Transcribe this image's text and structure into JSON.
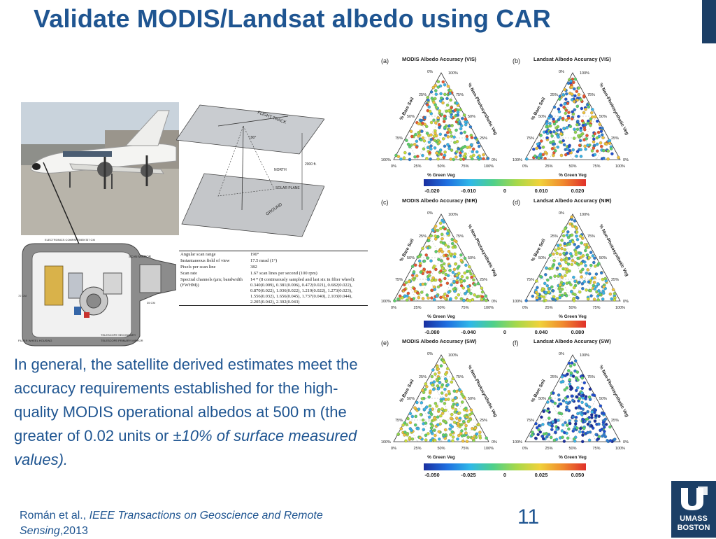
{
  "slide": {
    "title": "Validate MODIS/Landsat albedo using CAR",
    "body_plain": "In general, the satellite derived estimates meet the accuracy requirements established for the high-quality MODIS operational albedos at 500 m (the greater of 0.02 units or ",
    "body_italic": "±10% of surface measured values).",
    "citation_authors": "Román et al., ",
    "citation_journal": "IEEE Transactions on Geoscience and Remote Sensing",
    "citation_year": ",2013",
    "slide_number": "11",
    "logo_line1": "UMASS",
    "logo_line2": "BOSTON"
  },
  "diagram": {
    "flight_track": "FLIGHT TRACK",
    "north": "NORTH",
    "solar_plane": "SOLAR PLANE",
    "ground": "GROUND",
    "altitude": "2000 ft.",
    "angle": "190°"
  },
  "instrument": {
    "scan_mirror": "SCAN MIRROR",
    "electronics": "ELECTRONICS COMPARTMENT",
    "filter_wheel": "FILTER WHEEL HOUSING",
    "telescope": "TELESCOPE PRIMARY MIRROR",
    "secondary": "TELESCOPE SECONDARY",
    "dim1": "37 CM",
    "dim2": "72 CM",
    "dim3": "35 CM"
  },
  "specs": [
    {
      "key": "Angular scan range",
      "value": "190°"
    },
    {
      "key": "Instantaneous field of view",
      "value": "17.5 mrad (1°)"
    },
    {
      "key": "Pixels per scan line",
      "value": "382"
    },
    {
      "key": "Scan rate",
      "value": "1.67 scan lines per second (100 rpm)"
    },
    {
      "key": "Spectral channels (μm; bandwidth (FWHM))",
      "value": "14 * (8 continuously sampled and last six in filter wheel): 0.340(0.009), 0.381(0.006), 0.472(0.021), 0.682(0.022), 0.870(0.022), 1.036(0.022), 1.219(0.022), 1.273(0.023), 1.556(0.032), 1.656(0.045), 1.737(0.040), 2.103(0.044), 2.205(0.042), 2.302(0.043)"
    }
  ],
  "ternary": {
    "bare_soil": "% Bare Soil",
    "npv": "% Non-Photosynthetic Veg",
    "green_veg": "% Green Veg",
    "ticks_left": [
      "25%",
      "50%",
      "75%",
      "100%"
    ],
    "tick_top": "100%",
    "tick_0": "0%",
    "ticks_bottom": [
      "0%",
      "25%",
      "50%",
      "75%",
      "100%"
    ],
    "ticks_right": [
      "75%",
      "50%",
      "25%",
      "0%"
    ]
  },
  "panels": [
    {
      "label": "(a)",
      "title": "MODIS Albedo Accuracy (VIS)",
      "palette": "modis_vis"
    },
    {
      "label": "(b)",
      "title": "Landsat Albedo Accuracy (VIS)",
      "palette": "landsat_vis"
    },
    {
      "label": "(c)",
      "title": "MODIS Albedo Accuracy (NIR)",
      "palette": "modis_nir"
    },
    {
      "label": "(d)",
      "title": "Landsat Albedo Accuracy (NIR)",
      "palette": "landsat_nir"
    },
    {
      "label": "(e)",
      "title": "MODIS Albedo Accuracy (SW)",
      "palette": "modis_sw"
    },
    {
      "label": "(f)",
      "title": "Landsat Albedo Accuracy (SW)",
      "palette": "landsat_sw"
    }
  ],
  "colorbars": [
    {
      "ticks": [
        "-0.020",
        "-0.010",
        "0",
        "0.010",
        "0.020"
      ]
    },
    {
      "ticks": [
        "-0.080",
        "-0.040",
        "0",
        "0.040",
        "0.080"
      ]
    },
    {
      "ticks": [
        "-0.050",
        "-0.025",
        "0",
        "0.025",
        "0.050"
      ]
    }
  ],
  "colors": {
    "title_blue": "#1f5591",
    "umass_navy": "#1c3f66"
  }
}
